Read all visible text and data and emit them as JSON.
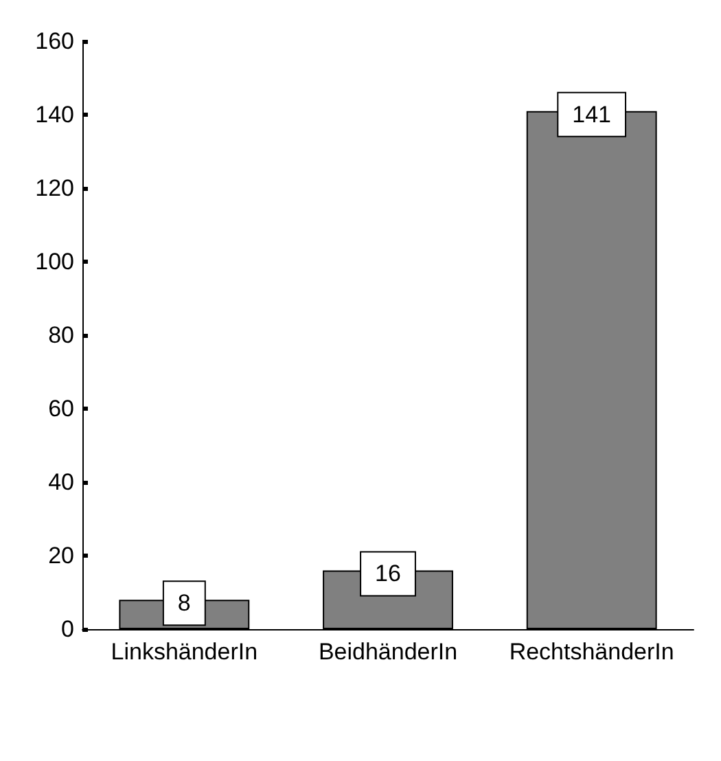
{
  "chart_data": {
    "type": "bar",
    "categories": [
      "LinkshänderIn",
      "BeidhänderIn",
      "RechtshänderIn"
    ],
    "values": [
      8,
      16,
      141
    ],
    "color": "#808080",
    "ylim": [
      0,
      160
    ],
    "yticks": [
      0,
      20,
      40,
      60,
      80,
      100,
      120,
      140,
      160
    ],
    "grid": false,
    "data_labels": true
  }
}
